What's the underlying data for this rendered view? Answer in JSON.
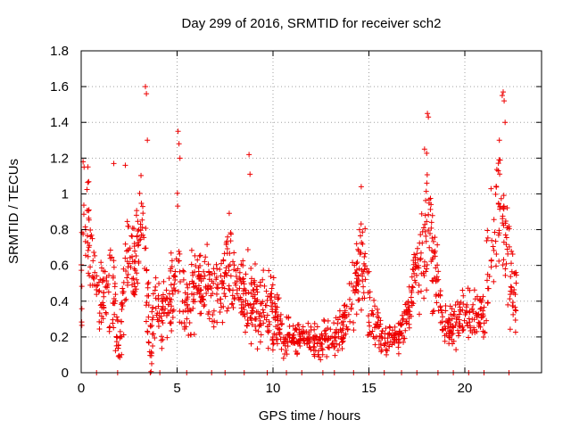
{
  "chart_data": {
    "type": "scatter",
    "title": "Day 299 of 2016, SRMTID for receiver sch2",
    "xlabel": "GPS time / hours",
    "ylabel": "SRMTID / TECUs",
    "xlim": [
      0,
      24
    ],
    "ylim": [
      0,
      1.8
    ],
    "grid": true,
    "marker": "+",
    "x_ticks": [
      0,
      5,
      10,
      15,
      20
    ],
    "x_tick_labels": [
      "0",
      "5",
      "10",
      "15",
      "20"
    ],
    "y_ticks": [
      0,
      0.2,
      0.4,
      0.6,
      0.8,
      1,
      1.2,
      1.4,
      1.6,
      1.8
    ],
    "y_tick_labels": [
      "0",
      "0.2",
      "0.4",
      "0.6",
      "0.8",
      "1",
      "1.2",
      "1.4",
      "1.6",
      "1.8"
    ],
    "series": [
      {
        "name": "sch2",
        "color": "#ee0000",
        "envelope": [
          [
            0.0,
            0.55,
            0.3
          ],
          [
            0.2,
            0.85,
            0.35
          ],
          [
            0.4,
            0.8,
            0.3
          ],
          [
            0.6,
            0.6,
            0.2
          ],
          [
            0.8,
            0.45,
            0.2
          ],
          [
            1.0,
            0.4,
            0.2
          ],
          [
            1.2,
            0.45,
            0.22
          ],
          [
            1.4,
            0.5,
            0.25
          ],
          [
            1.6,
            0.45,
            0.25
          ],
          [
            1.8,
            0.3,
            0.2
          ],
          [
            2.0,
            0.1,
            0.1
          ],
          [
            2.2,
            0.45,
            0.25
          ],
          [
            2.4,
            0.6,
            0.25
          ],
          [
            2.6,
            0.6,
            0.25
          ],
          [
            2.8,
            0.55,
            0.25
          ],
          [
            3.0,
            0.75,
            0.25
          ],
          [
            3.2,
            0.9,
            0.3
          ],
          [
            3.4,
            0.5,
            0.3
          ],
          [
            3.6,
            0.15,
            0.15
          ],
          [
            3.8,
            0.35,
            0.25
          ],
          [
            4.0,
            0.35,
            0.2
          ],
          [
            4.2,
            0.3,
            0.15
          ],
          [
            4.4,
            0.4,
            0.2
          ],
          [
            4.6,
            0.4,
            0.2
          ],
          [
            4.8,
            0.45,
            0.2
          ],
          [
            5.0,
            0.7,
            0.3
          ],
          [
            5.2,
            0.55,
            0.3
          ],
          [
            5.4,
            0.35,
            0.2
          ],
          [
            5.6,
            0.4,
            0.2
          ],
          [
            5.8,
            0.45,
            0.2
          ],
          [
            6.0,
            0.5,
            0.2
          ],
          [
            6.3,
            0.45,
            0.2
          ],
          [
            6.6,
            0.5,
            0.2
          ],
          [
            6.9,
            0.45,
            0.2
          ],
          [
            7.2,
            0.5,
            0.2
          ],
          [
            7.5,
            0.55,
            0.2
          ],
          [
            7.8,
            0.6,
            0.25
          ],
          [
            8.1,
            0.5,
            0.2
          ],
          [
            8.4,
            0.45,
            0.2
          ],
          [
            8.7,
            0.4,
            0.2
          ],
          [
            9.0,
            0.4,
            0.2
          ],
          [
            9.3,
            0.35,
            0.18
          ],
          [
            9.6,
            0.35,
            0.18
          ],
          [
            9.9,
            0.4,
            0.2
          ],
          [
            10.2,
            0.3,
            0.15
          ],
          [
            10.5,
            0.2,
            0.1
          ],
          [
            10.8,
            0.2,
            0.1
          ],
          [
            11.1,
            0.18,
            0.1
          ],
          [
            11.4,
            0.2,
            0.1
          ],
          [
            11.7,
            0.18,
            0.1
          ],
          [
            12.0,
            0.2,
            0.1
          ],
          [
            12.3,
            0.18,
            0.1
          ],
          [
            12.6,
            0.2,
            0.1
          ],
          [
            12.9,
            0.18,
            0.08
          ],
          [
            13.2,
            0.2,
            0.1
          ],
          [
            13.5,
            0.25,
            0.1
          ],
          [
            13.8,
            0.3,
            0.12
          ],
          [
            14.1,
            0.4,
            0.15
          ],
          [
            14.4,
            0.55,
            0.2
          ],
          [
            14.7,
            0.7,
            0.25
          ],
          [
            15.0,
            0.4,
            0.2
          ],
          [
            15.3,
            0.3,
            0.12
          ],
          [
            15.6,
            0.2,
            0.1
          ],
          [
            15.9,
            0.18,
            0.08
          ],
          [
            16.2,
            0.2,
            0.08
          ],
          [
            16.5,
            0.2,
            0.08
          ],
          [
            16.8,
            0.25,
            0.1
          ],
          [
            17.1,
            0.35,
            0.15
          ],
          [
            17.4,
            0.55,
            0.2
          ],
          [
            17.7,
            0.6,
            0.25
          ],
          [
            18.0,
            0.9,
            0.35
          ],
          [
            18.3,
            0.7,
            0.3
          ],
          [
            18.6,
            0.4,
            0.2
          ],
          [
            18.9,
            0.3,
            0.12
          ],
          [
            19.2,
            0.25,
            0.1
          ],
          [
            19.5,
            0.25,
            0.12
          ],
          [
            19.8,
            0.3,
            0.12
          ],
          [
            20.1,
            0.35,
            0.15
          ],
          [
            20.4,
            0.3,
            0.12
          ],
          [
            20.7,
            0.3,
            0.12
          ],
          [
            21.0,
            0.35,
            0.15
          ],
          [
            21.3,
            0.7,
            0.3
          ],
          [
            21.6,
            0.9,
            0.35
          ],
          [
            21.9,
            1.0,
            0.4
          ],
          [
            22.2,
            0.7,
            0.3
          ],
          [
            22.5,
            0.45,
            0.2
          ],
          [
            22.7,
            0.4,
            0.15
          ]
        ],
        "outliers": [
          [
            0.1,
            1.18
          ],
          [
            0.15,
            1.15
          ],
          [
            1.7,
            1.17
          ],
          [
            2.3,
            1.16
          ],
          [
            3.35,
            1.6
          ],
          [
            3.4,
            1.56
          ],
          [
            3.45,
            1.3
          ],
          [
            5.05,
            1.35
          ],
          [
            5.1,
            1.28
          ],
          [
            5.15,
            1.2
          ],
          [
            8.75,
            1.22
          ],
          [
            8.8,
            1.11
          ],
          [
            14.6,
            1.04
          ],
          [
            17.9,
            1.25
          ],
          [
            18.05,
            1.45
          ],
          [
            18.1,
            1.43
          ],
          [
            21.8,
            1.3
          ],
          [
            21.95,
            1.55
          ],
          [
            22.0,
            1.57
          ],
          [
            22.05,
            1.52
          ],
          [
            22.1,
            1.4
          ],
          [
            0.8,
            0
          ],
          [
            1.9,
            0
          ],
          [
            3.6,
            0
          ],
          [
            4.1,
            0
          ],
          [
            5.5,
            0
          ],
          [
            6.8,
            0
          ],
          [
            7.5,
            0
          ],
          [
            8.5,
            0
          ],
          [
            9.7,
            0
          ],
          [
            10.7,
            0
          ],
          [
            11.5,
            0
          ],
          [
            12.6,
            0
          ],
          [
            13.2,
            0
          ],
          [
            14.2,
            0
          ],
          [
            15.0,
            0
          ],
          [
            15.8,
            0
          ],
          [
            16.7,
            0
          ],
          [
            17.5,
            0
          ],
          [
            18.6,
            0
          ],
          [
            19.4,
            0
          ],
          [
            20.2,
            0
          ],
          [
            21.0,
            0
          ],
          [
            22.3,
            0
          ]
        ]
      }
    ]
  }
}
